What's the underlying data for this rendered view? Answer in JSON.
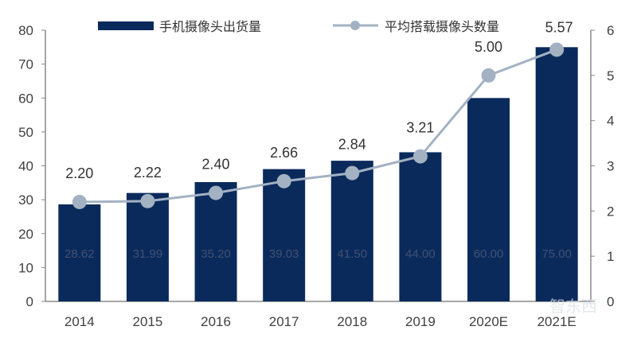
{
  "chart_data": {
    "type": "bar+line",
    "categories": [
      "2014",
      "2015",
      "2016",
      "2017",
      "2018",
      "2019",
      "2020E",
      "2021E"
    ],
    "series": [
      {
        "name": "手机摄像头出货量",
        "type": "bar",
        "axis": "left",
        "color": "#0b2a5c",
        "values": [
          28.62,
          31.99,
          35.2,
          39.03,
          41.5,
          44.0,
          60.0,
          75.0
        ],
        "labels": [
          "28.62",
          "31.99",
          "35.20",
          "39.03",
          "41.50",
          "44.00",
          "60.00",
          "75.00"
        ]
      },
      {
        "name": "平均搭载摄像头数量",
        "type": "line",
        "axis": "right",
        "color": "#a3b2c3",
        "values": [
          2.2,
          2.22,
          2.4,
          2.66,
          2.84,
          3.21,
          5.0,
          5.57
        ],
        "labels": [
          "2.20",
          "2.22",
          "2.40",
          "2.66",
          "2.84",
          "3.21",
          "5.00",
          "5.57"
        ]
      }
    ],
    "left_axis": {
      "ylim": [
        0,
        80
      ],
      "ticks": [
        "0",
        "10",
        "20",
        "30",
        "40",
        "50",
        "60",
        "70",
        "80"
      ]
    },
    "right_axis": {
      "ylim": [
        0,
        6
      ],
      "ticks": [
        "0",
        "1",
        "2",
        "3",
        "4",
        "5",
        "6"
      ]
    },
    "legend": "top",
    "grid": false
  },
  "watermark": "智东西"
}
